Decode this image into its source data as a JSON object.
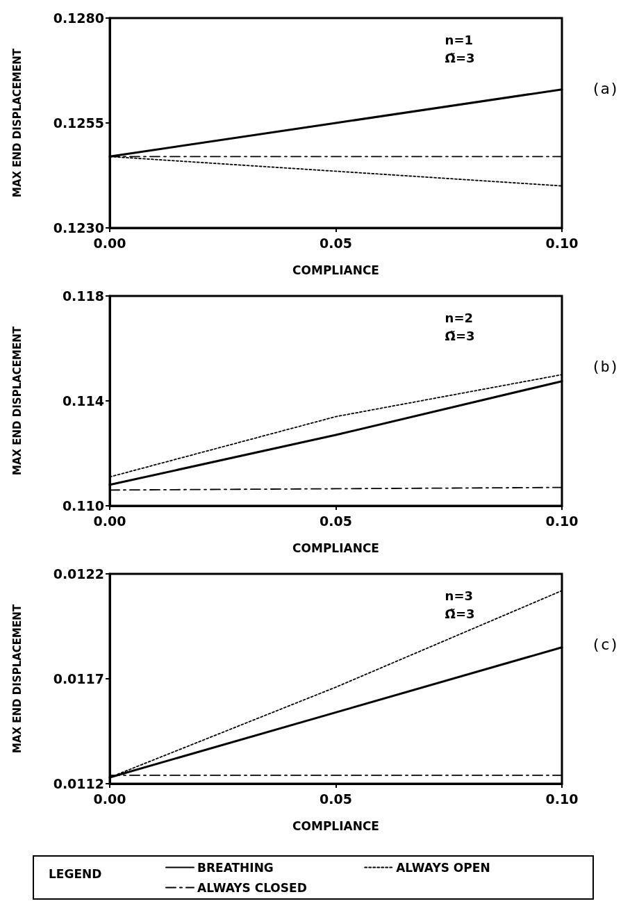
{
  "chart_data": [
    {
      "type": "line",
      "xlabel": "COMPLIANCE",
      "ylabel": "MAX END DISPLACEMENT",
      "annotations": [
        "n=1",
        "Ω̃=3",
        "(a)"
      ],
      "x": [
        0,
        0.05,
        0.1
      ],
      "xlim": [
        0,
        0.1
      ],
      "xticks": [
        {
          "value": 0,
          "label": "0.00"
        },
        {
          "value": 0.05,
          "label": "0.05"
        },
        {
          "value": 0.1,
          "label": "0.10"
        }
      ],
      "ylim": [
        0.123,
        0.128
      ],
      "yticks": [
        {
          "value": 0.123,
          "label": "0.1230"
        },
        {
          "value": 0.1255,
          "label": "0.1255"
        },
        {
          "value": 0.128,
          "label": "0.1280"
        }
      ],
      "grid": false,
      "marker": "none",
      "series": [
        {
          "color": "#000000",
          "line_style": "solid",
          "values": [
            0.1247,
            0.1255,
            0.1263
          ]
        },
        {
          "color": "#000000",
          "line_style": "dotted",
          "values": [
            0.1247,
            0.12435,
            0.124
          ]
        },
        {
          "color": "#000000",
          "line_style": "dashed",
          "values": [
            0.1247,
            0.1247,
            0.1247
          ]
        }
      ]
    },
    {
      "type": "line",
      "xlabel": "COMPLIANCE",
      "ylabel": "MAX END DISPLACEMENT",
      "annotations": [
        "n=2",
        "Ω̃=3",
        "(b)"
      ],
      "x": [
        0,
        0.05,
        0.1
      ],
      "xlim": [
        0,
        0.1
      ],
      "xticks": [
        {
          "value": 0,
          "label": "0.00"
        },
        {
          "value": 0.05,
          "label": "0.05"
        },
        {
          "value": 0.1,
          "label": "0.10"
        }
      ],
      "ylim": [
        0.11,
        0.118
      ],
      "yticks": [
        {
          "value": 0.11,
          "label": "0.110"
        },
        {
          "value": 0.114,
          "label": "0.114"
        },
        {
          "value": 0.118,
          "label": "0.118"
        }
      ],
      "grid": false,
      "marker": "none",
      "series": [
        {
          "color": "#000000",
          "line_style": "solid",
          "values": [
            0.1108,
            0.1127,
            0.11475
          ]
        },
        {
          "color": "#000000",
          "line_style": "dotted",
          "values": [
            0.1111,
            0.1134,
            0.115
          ]
        },
        {
          "color": "#000000",
          "line_style": "dashed",
          "values": [
            0.1106,
            0.11065,
            0.1107
          ]
        }
      ]
    },
    {
      "type": "line",
      "xlabel": "COMPLIANCE",
      "ylabel": "MAX END DISPLACEMENT",
      "annotations": [
        "n=3",
        "Ω̃=3",
        "(c)"
      ],
      "x": [
        0,
        0.05,
        0.1
      ],
      "xlim": [
        0,
        0.1
      ],
      "xticks": [
        {
          "value": 0,
          "label": "0.00"
        },
        {
          "value": 0.05,
          "label": "0.05"
        },
        {
          "value": 0.1,
          "label": "0.10"
        }
      ],
      "ylim": [
        0.0112,
        0.0122
      ],
      "yticks": [
        {
          "value": 0.0112,
          "label": "0.0112"
        },
        {
          "value": 0.0117,
          "label": "0.0117"
        },
        {
          "value": 0.0122,
          "label": "0.0122"
        }
      ],
      "grid": false,
      "marker": "none",
      "legend": "bottom",
      "legend_title": "LEGEND",
      "series": [
        {
          "name": "BREATHING",
          "color": "#000000",
          "line_style": "solid",
          "values": [
            0.01123,
            0.01154,
            0.01185
          ]
        },
        {
          "name": "ALWAYS OPEN",
          "color": "#000000",
          "line_style": "dotted",
          "values": [
            0.01123,
            0.01166,
            0.01212
          ]
        },
        {
          "name": "ALWAYS CLOSED",
          "color": "#000000",
          "line_style": "dashed",
          "values": [
            0.01124,
            0.01124,
            0.01124
          ]
        }
      ]
    }
  ]
}
